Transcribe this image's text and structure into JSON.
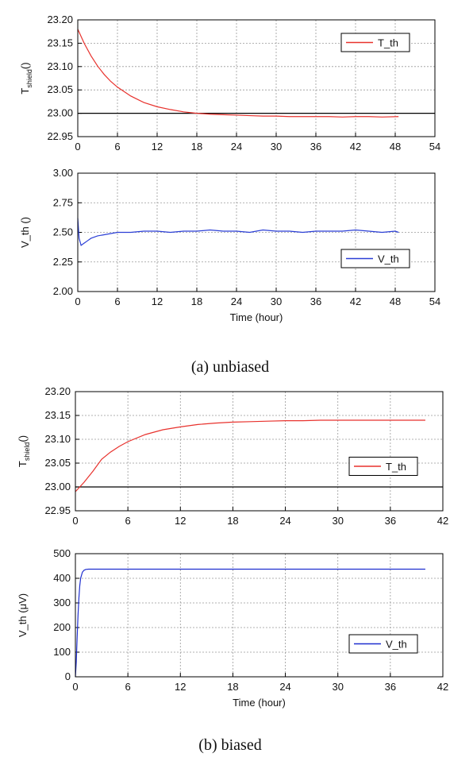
{
  "captions": [
    "(a)  unbiased",
    "(b)  biased"
  ],
  "chart_data": [
    {
      "type": "line",
      "ylabel": {
        "main": "T",
        "sub": "shield",
        "unit": "()"
      },
      "xlim": [
        0,
        54
      ],
      "xticks": [
        0,
        6,
        12,
        18,
        24,
        30,
        36,
        42,
        48,
        54
      ],
      "ylim": [
        22.95,
        23.2
      ],
      "yticks": [
        {
          "value": 22.95,
          "label": "22.95"
        },
        {
          "value": 23,
          "label": "23.00"
        },
        {
          "value": 23.05,
          "label": "23.05"
        },
        {
          "value": 23.1,
          "label": "23.10"
        },
        {
          "value": 23.15,
          "label": "23.15"
        },
        {
          "value": 23.2,
          "label": "23.20"
        }
      ],
      "grid": true,
      "hline": 23,
      "legend": "upper right",
      "x": [
        0,
        1,
        2,
        3,
        4,
        5,
        6,
        8,
        10,
        12,
        14,
        16,
        18,
        20,
        22,
        24,
        26,
        28,
        30,
        32,
        34,
        36,
        38,
        40,
        42,
        44,
        46,
        48.5
      ],
      "series": [
        {
          "name": "T_th",
          "color": "#e8322d",
          "values": [
            23.18,
            23.149,
            23.123,
            23.101,
            23.083,
            23.068,
            23.056,
            23.037,
            23.023,
            23.014,
            23.008,
            23.003,
            23.0,
            22.998,
            22.997,
            22.996,
            22.995,
            22.994,
            22.994,
            22.993,
            22.993,
            22.993,
            22.993,
            22.992,
            22.993,
            22.993,
            22.992,
            22.993
          ]
        }
      ]
    },
    {
      "type": "line",
      "ylabel": {
        "main": "V_th ()"
      },
      "xlabel": "Time (hour)",
      "xlim": [
        0,
        54
      ],
      "xticks": [
        0,
        6,
        12,
        18,
        24,
        30,
        36,
        42,
        48,
        54
      ],
      "ylim": [
        2,
        3
      ],
      "yticks": [
        {
          "value": 2,
          "label": "2.00"
        },
        {
          "value": 2.25,
          "label": "2.25"
        },
        {
          "value": 2.5,
          "label": "2.50"
        },
        {
          "value": 2.75,
          "label": "2.75"
        },
        {
          "value": 3,
          "label": "3.00"
        }
      ],
      "grid": true,
      "legend": "lower right",
      "x": [
        0,
        0.2,
        0.5,
        1,
        1.5,
        2,
        3,
        4,
        5,
        6,
        8,
        10,
        12,
        14,
        16,
        18,
        20,
        22,
        24,
        26,
        28,
        30,
        32,
        34,
        36,
        38,
        40,
        42,
        44,
        46,
        48,
        48.5
      ],
      "series": [
        {
          "name": "V_th",
          "color": "#2b3fd6",
          "values": [
            2.62,
            2.45,
            2.39,
            2.41,
            2.43,
            2.45,
            2.47,
            2.48,
            2.49,
            2.5,
            2.5,
            2.51,
            2.51,
            2.5,
            2.51,
            2.51,
            2.52,
            2.51,
            2.51,
            2.5,
            2.52,
            2.51,
            2.51,
            2.5,
            2.51,
            2.51,
            2.51,
            2.52,
            2.51,
            2.5,
            2.51,
            2.5
          ]
        }
      ]
    },
    {
      "type": "line",
      "ylabel": {
        "main": "T",
        "sub": "shield",
        "unit": "()"
      },
      "xlim": [
        0,
        42
      ],
      "xticks": [
        0,
        6,
        12,
        18,
        24,
        30,
        36,
        42
      ],
      "ylim": [
        22.95,
        23.2
      ],
      "yticks": [
        {
          "value": 22.95,
          "label": "22.95"
        },
        {
          "value": 23,
          "label": "23.00"
        },
        {
          "value": 23.05,
          "label": "23.05"
        },
        {
          "value": 23.1,
          "label": "23.10"
        },
        {
          "value": 23.15,
          "label": "23.15"
        },
        {
          "value": 23.2,
          "label": "23.20"
        }
      ],
      "grid": true,
      "hline": 23,
      "legend": "center right",
      "x": [
        0,
        1,
        2,
        3,
        4,
        5,
        6,
        8,
        10,
        12,
        14,
        16,
        18,
        20,
        22,
        24,
        26,
        28,
        30,
        32,
        34,
        36,
        38,
        40
      ],
      "series": [
        {
          "name": "T_th",
          "color": "#e8322d",
          "values": [
            22.99,
            23.01,
            23.033,
            23.058,
            23.073,
            23.085,
            23.095,
            23.11,
            23.12,
            23.126,
            23.131,
            23.134,
            23.136,
            23.137,
            23.138,
            23.139,
            23.139,
            23.14,
            23.14,
            23.14,
            23.14,
            23.14,
            23.14,
            23.14
          ]
        }
      ]
    },
    {
      "type": "line",
      "ylabel": {
        "main": "V_th (μV)"
      },
      "xlabel": "Time (hour)",
      "xlim": [
        0,
        42
      ],
      "xticks": [
        0,
        6,
        12,
        18,
        24,
        30,
        36,
        42
      ],
      "ylim": [
        0,
        500
      ],
      "yticks": [
        0,
        100,
        200,
        300,
        400,
        500
      ],
      "grid": true,
      "legend": "lower right",
      "x": [
        0,
        0.1,
        0.2,
        0.3,
        0.4,
        0.5,
        0.6,
        0.8,
        1,
        1.2,
        1.5,
        2,
        4,
        8,
        12,
        16,
        20,
        24,
        28,
        32,
        36,
        40
      ],
      "series": [
        {
          "name": "V_th",
          "color": "#1f2fcf",
          "values": [
            0,
            60,
            160,
            250,
            320,
            370,
            400,
            425,
            433,
            436,
            437,
            437,
            437,
            437,
            437,
            437,
            437,
            437,
            437,
            437,
            437,
            437
          ]
        }
      ]
    }
  ]
}
